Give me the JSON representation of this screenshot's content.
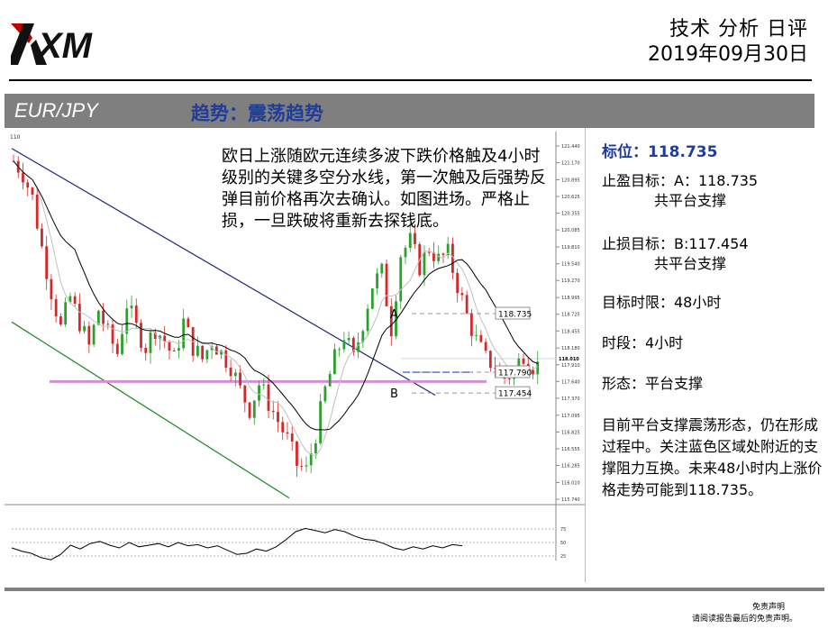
{
  "header": {
    "logo_text": "XM",
    "title": "技术 分析 日评",
    "date": "2019年09月30日"
  },
  "banner": {
    "pair": "EUR/JPY",
    "trend": "趋势：震荡趋势"
  },
  "chart_annotation": "欧日上涨随欧元连续多波下跌价格触及4小时级别的关键多空分水线，第一次触及后强势反弹目前价格再次去确认。如图进场。严格止损，一旦跌破将重新去探钱底。",
  "sidebar": {
    "target_label": "标位：118.735",
    "take_profit": "止盈目标：A：118.735",
    "take_profit_sub": "共平台支撑",
    "stop_loss": "止损目标：B:117.454",
    "stop_loss_sub": "共平台支撑",
    "time_limit": "目标时限：48小时",
    "timeframe": "时段：4小时",
    "pattern": "形态：平台支撑",
    "summary": "目前平台支撑震荡形态，仍在形成过程中。关注蓝色区域处附近的支撑阻力互换。未来48小时内上涨价格走势可能到118.735。"
  },
  "footer": {
    "disclaimer_title": "免责声明",
    "disclaimer_text": "请阅读报告最后的免责声明。"
  },
  "colors": {
    "bull": "#2ca02c",
    "bear": "#d62728",
    "channel_upper": "#1a237e",
    "channel_lower": "#1b8a1b",
    "support_band": "#d58fd6",
    "ma_slow": "#000000",
    "ma_fast": "#c0c0c0",
    "banner": "#7f7f7f",
    "accent": "#1f3d99"
  },
  "chart_data": {
    "type": "candlestick",
    "instrument": "EUR/JPY",
    "timeframe": "4H",
    "corner_label": "110",
    "y_ticks": [
      121.44,
      121.17,
      120.895,
      120.625,
      120.355,
      120.085,
      119.81,
      119.54,
      119.27,
      118.995,
      118.725,
      118.455,
      118.18,
      117.91,
      117.64,
      117.37,
      117.095,
      116.825,
      116.555,
      116.285,
      116.01,
      115.74
    ],
    "ylim": [
      115.74,
      121.44
    ],
    "close_path": [
      121.2,
      121.0,
      120.6,
      119.8,
      119.1,
      118.5,
      119.0,
      118.6,
      118.2,
      118.8,
      118.4,
      118.1,
      118.9,
      118.5,
      118.2,
      118.5,
      118.3,
      118.0,
      118.6,
      118.2,
      118.0,
      118.3,
      118.1,
      117.9,
      117.5,
      117.2,
      117.6,
      117.3,
      117.0,
      116.7,
      116.3,
      116.2,
      116.8,
      117.5,
      118.0,
      118.4,
      118.0,
      118.6,
      119.2,
      119.4,
      118.5,
      119.7,
      119.9,
      119.5,
      119.8,
      119.6,
      119.7,
      119.2,
      118.7,
      118.3,
      118.0,
      117.9,
      117.7,
      117.8,
      118.1,
      117.9
    ],
    "price_labels": [
      {
        "label": "118.735",
        "value": 118.735,
        "marker": "A"
      },
      {
        "label": "117.790",
        "value": 117.79,
        "marker": ""
      },
      {
        "label": "117.454",
        "value": 117.454,
        "marker": "B"
      }
    ],
    "current_price_label": "118.010",
    "current_price": 118.01,
    "support_band_value": 117.64,
    "oscillator": {
      "levels": [
        75,
        50,
        25
      ],
      "ylim": [
        0,
        100
      ],
      "values": [
        40,
        34,
        30,
        22,
        18,
        28,
        45,
        38,
        48,
        52,
        45,
        40,
        50,
        42,
        45,
        48,
        42,
        50,
        44,
        46,
        40,
        44,
        36,
        28,
        30,
        38,
        34,
        42,
        55,
        70,
        76,
        72,
        68,
        74,
        70,
        62,
        56,
        54,
        48,
        40,
        36,
        42,
        38,
        44,
        40,
        46,
        44
      ]
    }
  }
}
